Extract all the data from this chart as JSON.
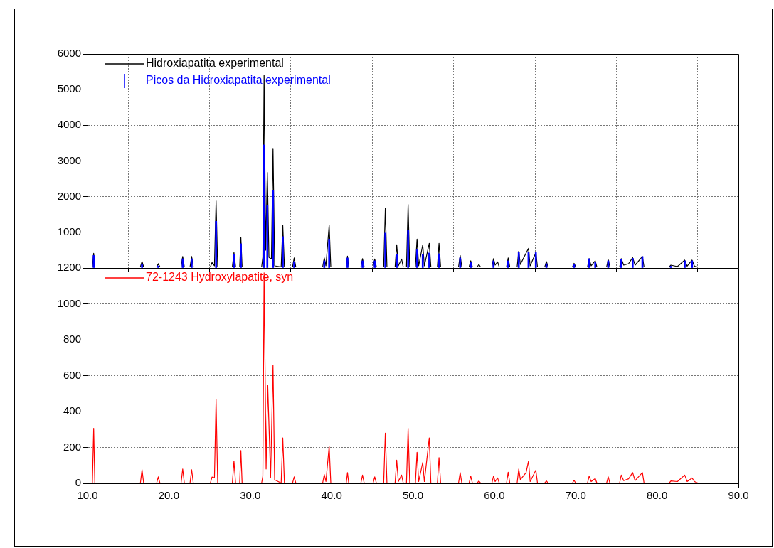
{
  "chart_data": [
    {
      "type": "line",
      "xlim": [
        10,
        90
      ],
      "xticks": [
        10,
        20,
        30,
        40,
        50,
        60,
        70,
        80,
        90
      ],
      "ylim": [
        0,
        6000
      ],
      "yticks": [
        {
          "value": 0,
          "label": null
        },
        1000,
        2000,
        3000,
        4000,
        5000,
        6000
      ],
      "grid": true,
      "legend": "top left",
      "tick_labels": "y",
      "marker": "none",
      "series": [
        {
          "name": "Hidroxiapatita experimental",
          "color": "#000000",
          "x": [
            10.0,
            10.6,
            10.76,
            10.9,
            16.5,
            16.7,
            16.9,
            18.5,
            18.7,
            18.9,
            21.5,
            21.7,
            21.9,
            22.6,
            22.8,
            23.0,
            25.1,
            25.3,
            25.6,
            25.8,
            26.0,
            27.8,
            28.0,
            28.2,
            28.7,
            28.85,
            29.0,
            31.4,
            31.55,
            31.7,
            31.9,
            32.1,
            32.3,
            32.6,
            32.8,
            33.0,
            33.8,
            34.0,
            34.2,
            35.2,
            35.4,
            35.6,
            38.9,
            39.1,
            39.3,
            39.7,
            39.9,
            41.8,
            41.95,
            42.1,
            43.6,
            43.8,
            44.0,
            45.1,
            45.3,
            45.5,
            46.4,
            46.6,
            46.8,
            47.8,
            48.0,
            48.2,
            48.6,
            48.8,
            49.2,
            49.4,
            49.6,
            50.3,
            50.5,
            50.7,
            51.2,
            51.4,
            52.0,
            52.2,
            53.0,
            53.2,
            53.4,
            55.6,
            55.8,
            56.0,
            56.9,
            57.1,
            57.3,
            57.9,
            58.1,
            58.3,
            59.7,
            59.9,
            60.1,
            60.4,
            60.6,
            61.5,
            61.7,
            61.9,
            62.8,
            63.0,
            63.2,
            63.9,
            64.2,
            64.4,
            65.1,
            65.3,
            66.2,
            66.4,
            66.6,
            69.6,
            69.8,
            70.0,
            71.45,
            71.65,
            71.9,
            72.4,
            72.6,
            73.8,
            74.0,
            74.2,
            75.4,
            75.6,
            75.9,
            76.5,
            77.0,
            77.3,
            78.2,
            78.4,
            81.5,
            81.7,
            82.5,
            83.4,
            83.7,
            84.3,
            84.6,
            85.0
          ],
          "values": [
            30,
            30,
            410,
            30,
            30,
            180,
            30,
            30,
            120,
            30,
            30,
            320,
            30,
            30,
            320,
            30,
            30,
            150,
            60,
            1880,
            30,
            30,
            430,
            30,
            30,
            850,
            30,
            30,
            300,
            5410,
            500,
            2680,
            300,
            250,
            3350,
            60,
            30,
            1200,
            30,
            30,
            280,
            30,
            30,
            280,
            60,
            1200,
            30,
            30,
            330,
            30,
            30,
            260,
            30,
            30,
            250,
            30,
            30,
            1670,
            30,
            30,
            650,
            60,
            250,
            30,
            30,
            1780,
            30,
            30,
            810,
            60,
            650,
            60,
            690,
            30,
            30,
            690,
            30,
            30,
            350,
            30,
            30,
            200,
            30,
            30,
            100,
            30,
            30,
            260,
            80,
            170,
            30,
            30,
            280,
            30,
            30,
            470,
            100,
            420,
            550,
            60,
            430,
            30,
            30,
            180,
            30,
            30,
            130,
            30,
            30,
            260,
            60,
            200,
            30,
            30,
            230,
            30,
            30,
            260,
            80,
            120,
            290,
            80,
            320,
            30,
            30,
            80,
            40,
            220,
            50,
            220,
            50,
            30
          ]
        },
        {
          "name": "Picos da Hidroxiapatita experimental",
          "color": "#0000ff",
          "type": "bar",
          "x": [
            10.76,
            16.7,
            18.7,
            21.7,
            22.8,
            25.8,
            28.0,
            28.85,
            31.7,
            32.1,
            32.8,
            34.0,
            35.4,
            39.1,
            39.7,
            41.95,
            43.8,
            45.3,
            46.6,
            48.0,
            49.4,
            50.5,
            51.2,
            52.0,
            53.2,
            55.8,
            57.1,
            59.9,
            61.7,
            63.0,
            64.2,
            65.1,
            66.4,
            69.8,
            71.65,
            72.4,
            74.0,
            75.6,
            77.0,
            78.2,
            81.7,
            83.4,
            84.3
          ],
          "values": [
            350,
            100,
            60,
            260,
            260,
            1310,
            380,
            680,
            3450,
            1750,
            2180,
            880,
            180,
            200,
            810,
            280,
            200,
            200,
            980,
            380,
            1050,
            510,
            380,
            420,
            400,
            280,
            150,
            200,
            200,
            450,
            450,
            430,
            120,
            100,
            260,
            150,
            200,
            250,
            270,
            320,
            50,
            200,
            200
          ]
        }
      ]
    },
    {
      "type": "line",
      "xlim": [
        10,
        90
      ],
      "xticks": [
        {
          "value": 10,
          "label": "10.0"
        },
        {
          "value": 20,
          "label": "20.0"
        },
        {
          "value": 30,
          "label": "30.0"
        },
        {
          "value": 40,
          "label": "40.0"
        },
        {
          "value": 50,
          "label": "50.0"
        },
        {
          "value": 60,
          "label": "60.0"
        },
        {
          "value": 70,
          "label": "70.0"
        },
        {
          "value": 80,
          "label": "80.0"
        },
        {
          "value": 90,
          "label": "90.0"
        }
      ],
      "ylim": [
        0,
        1200
      ],
      "yticks": [
        0,
        200,
        400,
        600,
        800,
        1000,
        1200
      ],
      "grid": true,
      "legend": "top left",
      "marker": "none",
      "series": [
        {
          "name": "72-1243 Hydroxylapatite, syn",
          "color": "#ff0000",
          "x": [
            10.0,
            10.6,
            10.76,
            10.9,
            16.5,
            16.7,
            16.9,
            18.5,
            18.7,
            18.9,
            21.5,
            21.7,
            21.9,
            22.6,
            22.8,
            23.0,
            25.1,
            25.3,
            25.6,
            25.8,
            26.0,
            27.8,
            28.0,
            28.2,
            28.7,
            28.85,
            29.0,
            31.4,
            31.55,
            31.7,
            31.95,
            32.15,
            32.5,
            32.8,
            33.0,
            33.8,
            34.0,
            34.2,
            35.2,
            35.4,
            35.6,
            38.9,
            39.1,
            39.3,
            39.7,
            39.9,
            41.8,
            41.95,
            42.1,
            43.6,
            43.8,
            44.0,
            45.1,
            45.3,
            45.5,
            46.4,
            46.6,
            46.8,
            47.8,
            48.0,
            48.2,
            48.6,
            48.8,
            49.2,
            49.4,
            49.6,
            50.3,
            50.5,
            50.7,
            51.2,
            51.4,
            52.0,
            52.2,
            53.0,
            53.2,
            53.4,
            55.6,
            55.8,
            56.0,
            56.9,
            57.1,
            57.3,
            57.9,
            58.1,
            58.3,
            59.7,
            59.9,
            60.1,
            60.4,
            60.6,
            61.5,
            61.7,
            61.9,
            62.8,
            63.0,
            63.2,
            63.9,
            64.2,
            64.4,
            65.1,
            65.3,
            66.2,
            66.4,
            66.6,
            69.6,
            69.8,
            70.0,
            71.45,
            71.65,
            71.9,
            72.4,
            72.6,
            73.8,
            74.0,
            74.2,
            75.4,
            75.6,
            75.9,
            76.5,
            77.0,
            77.3,
            78.2,
            78.4,
            81.5,
            81.7,
            82.5,
            83.4,
            83.7,
            84.3,
            84.6,
            85.0
          ],
          "values": [
            2,
            2,
            307,
            2,
            2,
            76,
            2,
            2,
            36,
            2,
            2,
            80,
            2,
            2,
            76,
            2,
            2,
            35,
            30,
            467,
            2,
            2,
            124,
            2,
            2,
            183,
            2,
            2,
            40,
            1173,
            80,
            547,
            33,
            657,
            20,
            2,
            253,
            2,
            2,
            36,
            2,
            2,
            49,
            10,
            207,
            2,
            2,
            60,
            2,
            2,
            46,
            2,
            2,
            36,
            2,
            2,
            280,
            2,
            2,
            129,
            10,
            46,
            2,
            2,
            307,
            2,
            2,
            173,
            10,
            116,
            10,
            253,
            2,
            2,
            143,
            2,
            2,
            60,
            2,
            2,
            40,
            2,
            2,
            13,
            2,
            2,
            40,
            10,
            30,
            2,
            2,
            62,
            2,
            2,
            80,
            20,
            60,
            124,
            10,
            73,
            2,
            2,
            13,
            2,
            2,
            17,
            2,
            2,
            40,
            10,
            27,
            2,
            2,
            36,
            2,
            2,
            46,
            15,
            25,
            60,
            15,
            60,
            2,
            2,
            13,
            10,
            46,
            10,
            30,
            10,
            2
          ]
        }
      ]
    }
  ]
}
